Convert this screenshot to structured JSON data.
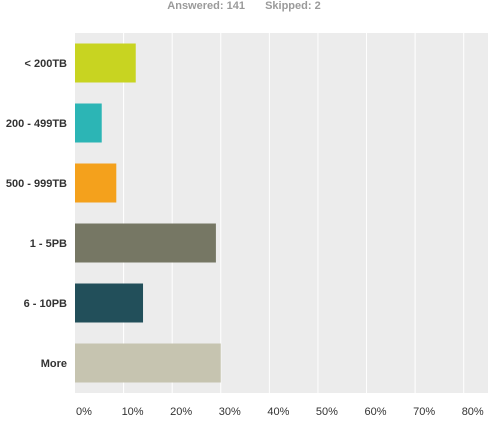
{
  "summary": {
    "answered_label": "Answered:",
    "answered_value": "141",
    "skipped_label": "Skipped:",
    "skipped_value": "2"
  },
  "chart_data": {
    "type": "bar",
    "orientation": "horizontal",
    "categories": [
      "< 200TB",
      "200 - 499TB",
      "500 - 999TB",
      "1 - 5PB",
      "6 - 10PB",
      "More"
    ],
    "values": [
      12.5,
      5.5,
      8.5,
      29,
      14,
      30
    ],
    "colors": [
      "#c8d421",
      "#2cb5b5",
      "#f4a11c",
      "#767764",
      "#224f5a",
      "#c6c4b0"
    ],
    "xlim": [
      0,
      85
    ],
    "xticks": [
      0,
      10,
      20,
      30,
      40,
      50,
      60,
      70,
      80
    ],
    "xtick_labels": [
      "0%",
      "10%",
      "20%",
      "30%",
      "40%",
      "50%",
      "60%",
      "70%",
      "80%"
    ],
    "grid": true,
    "title": "",
    "xlabel": "",
    "ylabel": ""
  }
}
